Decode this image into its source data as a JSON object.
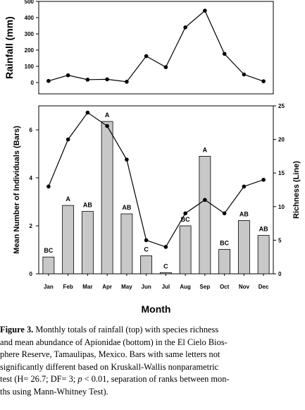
{
  "chart_data": [
    {
      "type": "line",
      "ylabel": "Rainfall (mm)",
      "ylim": [
        0,
        500
      ],
      "yticks": [
        "0",
        "100",
        "200",
        "300",
        "400",
        "500"
      ],
      "x": [
        "Jan",
        "Feb",
        "Mar",
        "Apr",
        "May",
        "Jun",
        "Jul",
        "Aug",
        "Sep",
        "Oct",
        "Nov",
        "Dec"
      ],
      "series": [
        {
          "values": [
            10,
            45,
            18,
            20,
            5,
            163,
            95,
            340,
            443,
            177,
            50,
            8
          ]
        }
      ],
      "grid": false
    },
    {
      "type": "bar",
      "categories": [
        "Jan",
        "Feb",
        "Mar",
        "Apr",
        "May",
        "Jun",
        "Jul",
        "Aug",
        "Sep",
        "Oct",
        "Nov",
        "Dec"
      ],
      "xlabel": "Month",
      "ylabel": "Mean Number of Individuals (Bars)",
      "ylim": [
        0,
        7
      ],
      "yticks": [
        "0",
        "2",
        "4",
        "6"
      ],
      "y2label": "Richness (Line)",
      "y2lim": [
        0,
        25
      ],
      "y2ticks": [
        "0",
        "5",
        "10",
        "15",
        "20",
        "25"
      ],
      "series": [
        {
          "name": "Bars",
          "values": [
            0.7,
            2.85,
            2.6,
            6.35,
            2.5,
            0.75,
            0.05,
            2.0,
            4.9,
            1.02,
            2.22,
            1.6
          ],
          "labels": [
            "BC",
            "A",
            "AB",
            "A",
            "AB",
            "C",
            "C",
            "BC",
            "A",
            "BC",
            "AB",
            "AB"
          ],
          "color": "#c8c8c8"
        },
        {
          "name": "Line",
          "axis": "y2",
          "values": [
            13,
            20,
            24,
            22,
            17,
            5,
            4,
            9,
            11,
            9,
            13,
            14
          ]
        }
      ],
      "grid": false
    }
  ],
  "caption": {
    "label": "Figure 3.",
    "lines": [
      " Monthly totals of rainfall (top) with species richness",
      "and mean abundance of Apionidae (bottom) in the El Cielo Bios-",
      "phere Reserve, Tamaulipas, Mexico. Bars with same letters not",
      "significantly different based on Kruskall-Wallis nonparametric",
      "test (H= 26.7; DF= 3; ",
      "p",
      " < 0.01, separation of ranks between mon-",
      "ths using Mann-Whitney Test)."
    ]
  }
}
